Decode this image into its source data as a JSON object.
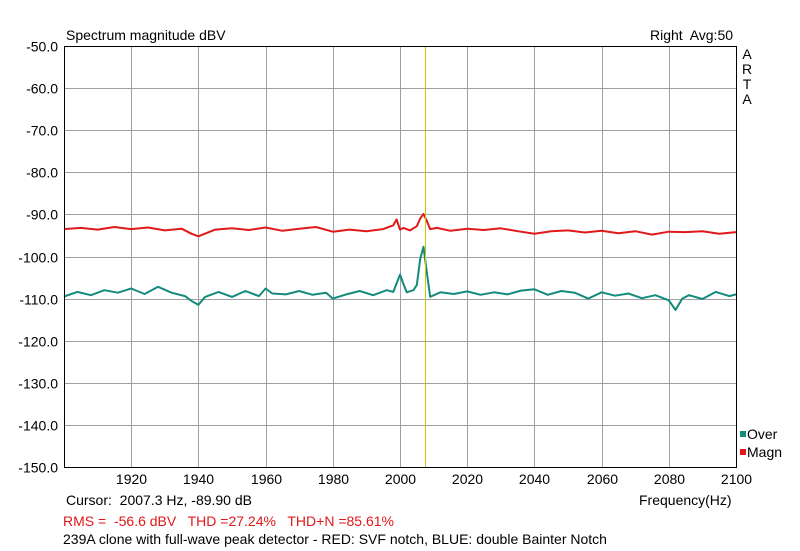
{
  "header": {
    "title": "Spectrum magnitude dBV",
    "right_info": "Right  Avg:50",
    "brand_letters": [
      "A",
      "R",
      "T",
      "A"
    ]
  },
  "legend": [
    {
      "label": "Over",
      "color": "#138a7c"
    },
    {
      "label": "Magn",
      "color": "#e0191a"
    }
  ],
  "footer": {
    "cursor": "Cursor:  2007.3 Hz, -89.90 dB",
    "xlabel": "Frequency(Hz)",
    "rms": "RMS =  -56.6 dBV   THD =27.24%   THD+N =85.61%",
    "note": "239A clone with full-wave peak detector - RED: SVF notch, BLUE: double Bainter Notch"
  },
  "chart_data": {
    "type": "line",
    "title": "Spectrum magnitude dBV",
    "xlabel": "Frequency(Hz)",
    "ylabel": "",
    "xlim": [
      1900,
      2100
    ],
    "ylim": [
      -150,
      -50
    ],
    "x_ticks": [
      1920,
      1940,
      1960,
      1980,
      2000,
      2020,
      2040,
      2060,
      2080,
      2100
    ],
    "x_tick_labels": [
      "1920",
      "1940",
      "1960",
      "1980",
      "2000",
      "2020",
      "2040",
      "2060",
      "2080",
      "2100"
    ],
    "y_ticks": [
      -50,
      -60,
      -70,
      -80,
      -90,
      -100,
      -110,
      -120,
      -130,
      -140,
      -150
    ],
    "y_tick_labels": [
      "-50.0",
      "-60.0",
      "-70.0",
      "-80.0",
      "-90.0",
      "-100.0",
      "-110.0",
      "-120.0",
      "-130.0",
      "-140.0",
      "-150.0"
    ],
    "grid": true,
    "cursor_x": 2007.3,
    "colors": {
      "grid": "#a0a0a0",
      "cursor": "#c8c800"
    },
    "series": [
      {
        "name": "Magn",
        "color": "#e0191a",
        "x": [
          1900,
          1905,
          1910,
          1915,
          1920,
          1925,
          1930,
          1935,
          1938,
          1940,
          1945,
          1950,
          1955,
          1960,
          1965,
          1970,
          1975,
          1980,
          1985,
          1990,
          1995,
          1998,
          1999,
          2000,
          2001,
          2003,
          2005,
          2006,
          2007,
          2008,
          2009,
          2011,
          2015,
          2020,
          2025,
          2030,
          2035,
          2040,
          2045,
          2050,
          2055,
          2060,
          2065,
          2070,
          2075,
          2080,
          2085,
          2090,
          2095,
          2100
        ],
        "y": [
          -93.5,
          -93.2,
          -93.6,
          -93.0,
          -93.5,
          -93.1,
          -93.8,
          -93.4,
          -94.6,
          -95.2,
          -93.6,
          -93.3,
          -93.7,
          -93.1,
          -93.9,
          -93.4,
          -93.0,
          -94.1,
          -93.6,
          -94.0,
          -93.5,
          -92.6,
          -91.2,
          -93.6,
          -93.2,
          -93.8,
          -92.8,
          -91.0,
          -89.9,
          -91.6,
          -93.5,
          -93.2,
          -93.9,
          -93.4,
          -93.7,
          -93.3,
          -94.0,
          -94.6,
          -94.0,
          -93.8,
          -94.3,
          -93.9,
          -94.5,
          -94.0,
          -94.8,
          -94.1,
          -94.2,
          -94.0,
          -94.6,
          -94.2
        ]
      },
      {
        "name": "Over",
        "color": "#138a7c",
        "x": [
          1900,
          1904,
          1908,
          1912,
          1916,
          1920,
          1924,
          1928,
          1932,
          1936,
          1938,
          1940,
          1942,
          1946,
          1950,
          1954,
          1958,
          1960,
          1962,
          1966,
          1970,
          1974,
          1978,
          1980,
          1984,
          1988,
          1992,
          1996,
          1998,
          2000,
          2001,
          2002,
          2004,
          2005,
          2006,
          2007,
          2008,
          2009,
          2012,
          2016,
          2020,
          2024,
          2028,
          2032,
          2036,
          2040,
          2044,
          2048,
          2052,
          2056,
          2060,
          2064,
          2068,
          2072,
          2076,
          2080,
          2082,
          2084,
          2086,
          2090,
          2094,
          2098,
          2100
        ],
        "y": [
          -109.5,
          -108.4,
          -109.2,
          -108.0,
          -108.6,
          -107.6,
          -108.9,
          -107.2,
          -108.6,
          -109.4,
          -110.6,
          -111.5,
          -109.6,
          -108.4,
          -109.6,
          -108.2,
          -109.4,
          -107.6,
          -108.8,
          -109.0,
          -108.2,
          -109.1,
          -108.6,
          -110.0,
          -109.0,
          -108.2,
          -109.2,
          -108.0,
          -108.4,
          -104.3,
          -106.5,
          -108.5,
          -108.0,
          -106.8,
          -100.6,
          -97.7,
          -103.9,
          -109.6,
          -108.5,
          -108.9,
          -108.3,
          -109.1,
          -108.5,
          -109.0,
          -108.1,
          -107.8,
          -109.1,
          -108.2,
          -108.6,
          -110.0,
          -108.5,
          -109.3,
          -108.8,
          -109.9,
          -109.2,
          -110.4,
          -112.7,
          -110.0,
          -109.2,
          -110.1,
          -108.4,
          -109.4,
          -109.0
        ]
      }
    ]
  }
}
